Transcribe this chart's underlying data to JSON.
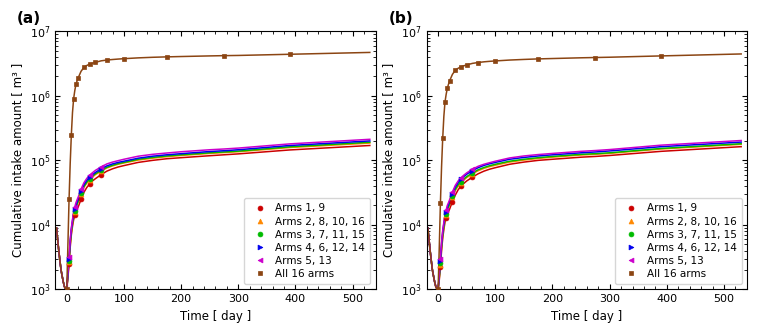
{
  "xlabel": "Time [ day ]",
  "ylabel": "Cumulative intake amount [ m³ ]",
  "xlim": [
    -20,
    540
  ],
  "ylim": [
    1000,
    10000000
  ],
  "xticks": [
    0,
    100,
    200,
    300,
    400,
    500
  ],
  "series": [
    {
      "label": "Arms 1, 9",
      "color": "#cc0000",
      "marker": "o",
      "markersize": 3.5,
      "marker_indices_a": [
        11,
        16,
        20,
        23,
        26
      ],
      "marker_indices_b": [
        11,
        16,
        20,
        23,
        26
      ],
      "x_a": [
        -18,
        -16,
        -14,
        -12,
        -10,
        -8,
        -6,
        -4,
        -2,
        0,
        2,
        4,
        6,
        8,
        10,
        12,
        14,
        16,
        18,
        20,
        25,
        30,
        35,
        40,
        45,
        50,
        60,
        70,
        80,
        90,
        100,
        125,
        150,
        175,
        200,
        250,
        275,
        300,
        390,
        530
      ],
      "y_a": [
        9000,
        6000,
        4000,
        2800,
        2000,
        1600,
        1300,
        1100,
        1020,
        1020,
        1500,
        2500,
        4500,
        7000,
        9500,
        12000,
        14000,
        16000,
        17500,
        19000,
        25000,
        32000,
        38000,
        43000,
        48000,
        52000,
        60000,
        68000,
        74000,
        79000,
        83000,
        93000,
        100000,
        106000,
        110000,
        118000,
        122000,
        126000,
        145000,
        170000
      ],
      "x_b": [
        -18,
        -16,
        -14,
        -12,
        -10,
        -8,
        -6,
        -4,
        -2,
        0,
        2,
        4,
        6,
        8,
        10,
        12,
        14,
        16,
        18,
        20,
        25,
        30,
        35,
        40,
        45,
        50,
        60,
        70,
        80,
        90,
        100,
        125,
        150,
        175,
        200,
        250,
        275,
        300,
        390,
        530
      ],
      "y_b": [
        9000,
        6000,
        4000,
        2800,
        2000,
        1600,
        1300,
        1100,
        1020,
        1020,
        1400,
        2200,
        4000,
        6200,
        8500,
        11000,
        12800,
        14500,
        16000,
        17500,
        23000,
        29000,
        35000,
        40000,
        44000,
        48000,
        55000,
        62000,
        68000,
        73000,
        77000,
        87000,
        94000,
        100000,
        104000,
        112000,
        115000,
        119000,
        138000,
        163000
      ]
    },
    {
      "label": "Arms 2, 8, 10, 16",
      "color": "#ff8800",
      "marker": "^",
      "markersize": 3.5,
      "marker_indices_a": [
        11,
        16,
        20,
        23,
        26
      ],
      "marker_indices_b": [
        11,
        16,
        20,
        23,
        26
      ],
      "x_a": [
        -18,
        -16,
        -14,
        -12,
        -10,
        -8,
        -6,
        -4,
        -2,
        0,
        2,
        4,
        6,
        8,
        10,
        12,
        14,
        16,
        18,
        20,
        25,
        30,
        35,
        40,
        45,
        50,
        60,
        70,
        80,
        90,
        100,
        125,
        150,
        175,
        200,
        250,
        275,
        300,
        390,
        530
      ],
      "y_a": [
        9000,
        6000,
        4000,
        2800,
        2000,
        1600,
        1300,
        1100,
        1020,
        1020,
        1600,
        2700,
        5000,
        7700,
        10500,
        13500,
        16000,
        18500,
        20500,
        22500,
        30000,
        38000,
        44500,
        50000,
        55000,
        60000,
        68000,
        76000,
        82000,
        87000,
        91000,
        101000,
        108000,
        114000,
        119000,
        128000,
        132000,
        136000,
        158000,
        185000
      ],
      "x_b": [
        -18,
        -16,
        -14,
        -12,
        -10,
        -8,
        -6,
        -4,
        -2,
        0,
        2,
        4,
        6,
        8,
        10,
        12,
        14,
        16,
        18,
        20,
        25,
        30,
        35,
        40,
        45,
        50,
        60,
        70,
        80,
        90,
        100,
        125,
        150,
        175,
        200,
        250,
        275,
        300,
        390,
        530
      ],
      "y_b": [
        9000,
        6000,
        4000,
        2800,
        2000,
        1600,
        1300,
        1100,
        1020,
        1020,
        1500,
        2400,
        4400,
        6900,
        9400,
        12000,
        14200,
        16500,
        18500,
        20500,
        27000,
        34000,
        40000,
        45000,
        49500,
        54000,
        62000,
        69000,
        75000,
        80000,
        84000,
        94000,
        101000,
        107000,
        112000,
        121000,
        124000,
        128000,
        150000,
        177000
      ]
    },
    {
      "label": "Arms 3, 7, 11, 15",
      "color": "#00bb00",
      "marker": "o",
      "markersize": 3.5,
      "marker_indices_a": [
        11,
        16,
        20,
        23,
        26
      ],
      "marker_indices_b": [
        11,
        16,
        20,
        23,
        26
      ],
      "x_a": [
        -18,
        -16,
        -14,
        -12,
        -10,
        -8,
        -6,
        -4,
        -2,
        0,
        2,
        4,
        6,
        8,
        10,
        12,
        14,
        16,
        18,
        20,
        25,
        30,
        35,
        40,
        45,
        50,
        60,
        70,
        80,
        90,
        100,
        125,
        150,
        175,
        200,
        250,
        275,
        300,
        390,
        530
      ],
      "y_a": [
        9000,
        6000,
        4000,
        2800,
        2000,
        1600,
        1300,
        1100,
        1020,
        1020,
        1650,
        2800,
        5200,
        8000,
        10800,
        14000,
        16500,
        19000,
        21000,
        23500,
        31500,
        39500,
        46000,
        52000,
        57000,
        62000,
        70000,
        78000,
        84000,
        89000,
        93000,
        104000,
        111000,
        117000,
        122000,
        131000,
        135000,
        139000,
        162000,
        191000
      ],
      "x_b": [
        -18,
        -16,
        -14,
        -12,
        -10,
        -8,
        -6,
        -4,
        -2,
        0,
        2,
        4,
        6,
        8,
        10,
        12,
        14,
        16,
        18,
        20,
        25,
        30,
        35,
        40,
        45,
        50,
        60,
        70,
        80,
        90,
        100,
        125,
        150,
        175,
        200,
        250,
        275,
        300,
        390,
        530
      ],
      "y_b": [
        9000,
        6000,
        4000,
        2800,
        2000,
        1600,
        1300,
        1100,
        1020,
        1020,
        1550,
        2600,
        4700,
        7200,
        9700,
        12500,
        14800,
        17000,
        19000,
        21000,
        28000,
        35500,
        42000,
        47000,
        51500,
        56000,
        64000,
        71500,
        77500,
        82500,
        87000,
        97000,
        104000,
        110000,
        115000,
        124000,
        127000,
        131000,
        153000,
        181000
      ]
    },
    {
      "label": "Arms 4, 6, 12, 14",
      "color": "#0000ee",
      "marker": ">",
      "markersize": 3.5,
      "marker_indices_a": [
        11,
        16,
        20,
        23,
        26
      ],
      "marker_indices_b": [
        11,
        16,
        20,
        23,
        26
      ],
      "x_a": [
        -18,
        -16,
        -14,
        -12,
        -10,
        -8,
        -6,
        -4,
        -2,
        0,
        2,
        4,
        6,
        8,
        10,
        12,
        14,
        16,
        18,
        20,
        25,
        30,
        35,
        40,
        45,
        50,
        60,
        70,
        80,
        90,
        100,
        125,
        150,
        175,
        200,
        250,
        275,
        300,
        390,
        530
      ],
      "y_a": [
        9000,
        6000,
        4000,
        2800,
        2000,
        1600,
        1300,
        1100,
        1020,
        1020,
        1750,
        3000,
        5600,
        8600,
        11500,
        15000,
        17500,
        20000,
        22500,
        25000,
        33000,
        42000,
        49000,
        55000,
        60000,
        65000,
        74000,
        82000,
        88000,
        93000,
        97000,
        108000,
        116000,
        122000,
        127000,
        137000,
        141000,
        146000,
        170000,
        200000
      ],
      "x_b": [
        -18,
        -16,
        -14,
        -12,
        -10,
        -8,
        -6,
        -4,
        -2,
        0,
        2,
        4,
        6,
        8,
        10,
        12,
        14,
        16,
        18,
        20,
        25,
        30,
        35,
        40,
        45,
        50,
        60,
        70,
        80,
        90,
        100,
        125,
        150,
        175,
        200,
        250,
        275,
        300,
        390,
        530
      ],
      "y_b": [
        9000,
        6000,
        4000,
        2800,
        2000,
        1600,
        1300,
        1100,
        1020,
        1020,
        1650,
        2800,
        5100,
        7800,
        10500,
        13500,
        16000,
        18500,
        20500,
        23000,
        30500,
        38500,
        45000,
        51000,
        56000,
        61000,
        69500,
        77000,
        83500,
        88500,
        93000,
        104000,
        111000,
        117000,
        122000,
        131000,
        135000,
        140000,
        163000,
        192000
      ]
    },
    {
      "label": "Arms 5, 13",
      "color": "#cc00cc",
      "marker": "<",
      "markersize": 3.5,
      "marker_indices_a": [
        11,
        16,
        20,
        23,
        26
      ],
      "marker_indices_b": [
        11,
        16,
        20,
        23,
        26
      ],
      "x_a": [
        -18,
        -16,
        -14,
        -12,
        -10,
        -8,
        -6,
        -4,
        -2,
        0,
        2,
        4,
        6,
        8,
        10,
        12,
        14,
        16,
        18,
        20,
        25,
        30,
        35,
        40,
        45,
        50,
        60,
        70,
        80,
        90,
        100,
        125,
        150,
        175,
        200,
        250,
        275,
        300,
        390,
        530
      ],
      "y_a": [
        9000,
        6000,
        4000,
        2800,
        2000,
        1600,
        1300,
        1100,
        1020,
        1020,
        1850,
        3200,
        5900,
        9000,
        12200,
        16000,
        19000,
        22000,
        24500,
        27000,
        36000,
        45000,
        52500,
        59000,
        64500,
        70000,
        79000,
        88000,
        94000,
        99000,
        104000,
        116000,
        124000,
        130000,
        136000,
        146000,
        150000,
        155000,
        180000,
        212000
      ],
      "x_b": [
        -18,
        -16,
        -14,
        -12,
        -10,
        -8,
        -6,
        -4,
        -2,
        0,
        2,
        4,
        6,
        8,
        10,
        12,
        14,
        16,
        18,
        20,
        25,
        30,
        35,
        40,
        45,
        50,
        60,
        70,
        80,
        90,
        100,
        125,
        150,
        175,
        200,
        250,
        275,
        300,
        390,
        530
      ],
      "y_b": [
        9000,
        6000,
        4000,
        2800,
        2000,
        1600,
        1300,
        1100,
        1020,
        1020,
        1750,
        3000,
        5400,
        8200,
        11000,
        14500,
        17000,
        20000,
        22000,
        24500,
        32500,
        41000,
        48000,
        54000,
        59000,
        64000,
        73000,
        81000,
        87000,
        92000,
        97000,
        109000,
        117000,
        123000,
        128000,
        138000,
        142000,
        147000,
        172000,
        203000
      ]
    },
    {
      "label": "All 16 arms",
      "color": "#8B4513",
      "marker": "s",
      "markersize": 3.5,
      "marker_indices_a": [
        9,
        11,
        13,
        15,
        17,
        19,
        21,
        23,
        25,
        27,
        30,
        33,
        36,
        38
      ],
      "marker_indices_b": [
        9,
        11,
        13,
        15,
        17,
        19,
        21,
        23,
        25,
        27,
        30,
        33,
        36,
        38
      ],
      "x_a": [
        -18,
        -16,
        -14,
        -12,
        -10,
        -8,
        -6,
        -4,
        -2,
        0,
        2,
        4,
        6,
        8,
        10,
        12,
        14,
        16,
        18,
        20,
        25,
        30,
        35,
        40,
        45,
        50,
        60,
        70,
        80,
        90,
        100,
        125,
        150,
        175,
        200,
        250,
        275,
        300,
        390,
        530
      ],
      "y_a": [
        9000,
        6000,
        4000,
        2800,
        2000,
        1600,
        1300,
        1100,
        1020,
        1020,
        5000,
        25000,
        90000,
        250000,
        550000,
        900000,
        1200000,
        1500000,
        1700000,
        1900000,
        2400000,
        2750000,
        2950000,
        3100000,
        3200000,
        3300000,
        3480000,
        3580000,
        3650000,
        3710000,
        3760000,
        3870000,
        3950000,
        4010000,
        4060000,
        4150000,
        4190000,
        4220000,
        4400000,
        4700000
      ],
      "x_b": [
        -18,
        -16,
        -14,
        -12,
        -10,
        -8,
        -6,
        -4,
        -2,
        0,
        2,
        4,
        6,
        8,
        10,
        12,
        14,
        16,
        18,
        20,
        25,
        30,
        35,
        40,
        45,
        50,
        60,
        70,
        80,
        90,
        100,
        125,
        150,
        175,
        200,
        250,
        275,
        300,
        390,
        530
      ],
      "y_b": [
        9000,
        6000,
        4000,
        2800,
        2000,
        1600,
        1300,
        1100,
        1020,
        1020,
        4500,
        22000,
        80000,
        220000,
        480000,
        800000,
        1050000,
        1300000,
        1500000,
        1700000,
        2150000,
        2480000,
        2670000,
        2820000,
        2920000,
        3010000,
        3180000,
        3280000,
        3360000,
        3420000,
        3470000,
        3580000,
        3660000,
        3730000,
        3780000,
        3880000,
        3920000,
        3960000,
        4150000,
        4450000
      ]
    }
  ],
  "legend_loc": "lower right",
  "fontsize_label": 8.5,
  "fontsize_tick": 8,
  "fontsize_legend": 7.5
}
